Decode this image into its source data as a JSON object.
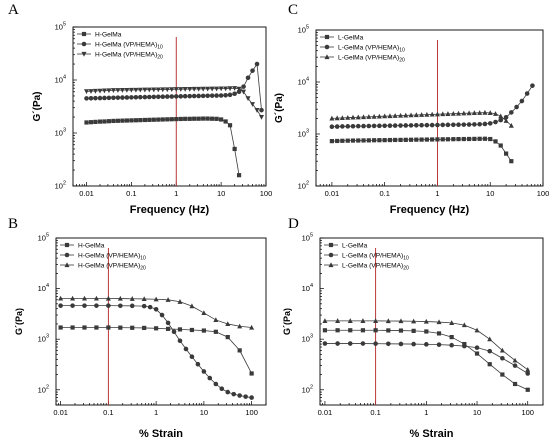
{
  "colors": {
    "series": "#3a3a3a",
    "axis": "#000000",
    "marker_line": "#b22222"
  },
  "chart_data": [
    {
      "type": "line",
      "panel": "A",
      "xscale": "log",
      "yscale": "log",
      "xlim": [
        0.005,
        100
      ],
      "ylim": [
        100,
        100000
      ],
      "xlabel": "Frequency (Hz)",
      "ylabel": "G´(Pa)",
      "xticks": [
        "0.01",
        "0.1",
        "1",
        "10",
        "100"
      ],
      "yticks": [
        {
          "m": "10",
          "e": "2"
        },
        {
          "m": "10",
          "e": "3"
        },
        {
          "m": "10",
          "e": "4"
        },
        {
          "m": "10",
          "e": "5"
        }
      ],
      "legend": "top-left",
      "vline": 1,
      "series": [
        {
          "name": "H-GelMa",
          "name_sub": "",
          "marker": "square",
          "x": [
            0.01,
            0.0126,
            0.0158,
            0.02,
            0.0251,
            0.0316,
            0.0398,
            0.0501,
            0.0631,
            0.0794,
            0.1,
            0.126,
            0.158,
            0.2,
            0.251,
            0.316,
            0.398,
            0.501,
            0.631,
            0.794,
            1,
            1.26,
            1.58,
            2,
            2.51,
            3.16,
            3.98,
            5.01,
            6.31,
            7.94,
            10,
            12.6,
            15.8,
            20,
            25.1
          ],
          "y": [
            1580,
            1600,
            1620,
            1640,
            1650,
            1670,
            1690,
            1700,
            1710,
            1720,
            1730,
            1740,
            1750,
            1760,
            1770,
            1780,
            1790,
            1800,
            1810,
            1820,
            1830,
            1840,
            1850,
            1850,
            1860,
            1860,
            1870,
            1870,
            1860,
            1850,
            1800,
            1650,
            1400,
            500,
            160
          ]
        },
        {
          "name": "H-GelMa (VP/HEMA)",
          "name_sub": "10",
          "marker": "circle",
          "x": [
            0.01,
            0.0126,
            0.0158,
            0.02,
            0.0251,
            0.0316,
            0.0398,
            0.0501,
            0.0631,
            0.0794,
            0.1,
            0.126,
            0.158,
            0.2,
            0.251,
            0.316,
            0.398,
            0.501,
            0.631,
            0.794,
            1,
            1.26,
            1.58,
            2,
            2.51,
            3.16,
            3.98,
            5.01,
            6.31,
            7.94,
            10,
            12.6,
            15.8,
            20,
            25.1,
            31.6,
            39.8,
            50.1,
            63.1,
            79.4
          ],
          "y": [
            4500,
            4520,
            4540,
            4560,
            4580,
            4600,
            4620,
            4640,
            4660,
            4680,
            4700,
            4720,
            4740,
            4760,
            4780,
            4800,
            4820,
            4840,
            4860,
            4880,
            4900,
            4920,
            4940,
            4960,
            4980,
            5000,
            5020,
            5040,
            5060,
            5080,
            5100,
            5150,
            5250,
            5500,
            6000,
            7500,
            11000,
            15000,
            20000,
            2700
          ]
        },
        {
          "name": "H-GelMa (VP/HEMA)",
          "name_sub": "20",
          "marker": "triangle-down",
          "x": [
            0.01,
            0.0126,
            0.0158,
            0.02,
            0.0251,
            0.0316,
            0.0398,
            0.0501,
            0.0631,
            0.0794,
            0.1,
            0.126,
            0.158,
            0.2,
            0.251,
            0.316,
            0.398,
            0.501,
            0.631,
            0.794,
            1,
            1.26,
            1.58,
            2,
            2.51,
            3.16,
            3.98,
            5.01,
            6.31,
            7.94,
            10,
            12.6,
            15.8,
            20,
            25.1,
            31.6,
            39.8,
            50.1,
            63.1,
            79.4
          ],
          "y": [
            6100,
            6150,
            6200,
            6250,
            6300,
            6350,
            6400,
            6420,
            6440,
            6460,
            6480,
            6500,
            6520,
            6540,
            6560,
            6580,
            6600,
            6620,
            6640,
            6660,
            6680,
            6700,
            6720,
            6740,
            6760,
            6780,
            6800,
            6820,
            6840,
            6860,
            6880,
            6900,
            6950,
            7000,
            6800,
            6000,
            4500,
            3500,
            2700,
            2000
          ]
        }
      ]
    },
    {
      "type": "line",
      "panel": "C",
      "xscale": "log",
      "yscale": "log",
      "xlim": [
        0.005,
        100
      ],
      "ylim": [
        100,
        100000
      ],
      "xlabel": "Frequency (Hz)",
      "ylabel": "G´(Pa)",
      "xticks": [
        "0.01",
        "0.1",
        "1",
        "10",
        "100"
      ],
      "yticks": [
        {
          "m": "10",
          "e": "2"
        },
        {
          "m": "10",
          "e": "3"
        },
        {
          "m": "10",
          "e": "4"
        },
        {
          "m": "10",
          "e": "5"
        }
      ],
      "legend": "top-left",
      "vline": 1,
      "series": [
        {
          "name": "L-GelMa",
          "name_sub": "",
          "marker": "square",
          "x": [
            0.01,
            0.0126,
            0.0158,
            0.02,
            0.0251,
            0.0316,
            0.0398,
            0.0501,
            0.0631,
            0.0794,
            0.1,
            0.126,
            0.158,
            0.2,
            0.251,
            0.316,
            0.398,
            0.501,
            0.631,
            0.794,
            1,
            1.26,
            1.58,
            2,
            2.51,
            3.16,
            3.98,
            5.01,
            6.31,
            7.94,
            10,
            12.6,
            15.8,
            20,
            25.1
          ],
          "y": [
            730,
            735,
            740,
            745,
            748,
            750,
            752,
            755,
            758,
            760,
            762,
            765,
            768,
            770,
            772,
            775,
            778,
            780,
            782,
            785,
            788,
            790,
            792,
            795,
            798,
            800,
            802,
            805,
            808,
            810,
            800,
            720,
            600,
            420,
            300
          ]
        },
        {
          "name": "L-GelMa (VP/HEMA)",
          "name_sub": "10",
          "marker": "circle",
          "x": [
            0.01,
            0.0126,
            0.0158,
            0.02,
            0.0251,
            0.0316,
            0.0398,
            0.0501,
            0.0631,
            0.0794,
            0.1,
            0.126,
            0.158,
            0.2,
            0.251,
            0.316,
            0.398,
            0.501,
            0.631,
            0.794,
            1,
            1.26,
            1.58,
            2,
            2.51,
            3.16,
            3.98,
            5.01,
            6.31,
            7.94,
            10,
            12.6,
            15.8,
            20,
            25.1,
            31.6,
            39.8,
            50.1,
            63.1
          ],
          "y": [
            1380,
            1390,
            1400,
            1405,
            1410,
            1415,
            1420,
            1425,
            1430,
            1435,
            1440,
            1445,
            1450,
            1455,
            1460,
            1465,
            1470,
            1475,
            1480,
            1485,
            1490,
            1495,
            1500,
            1505,
            1510,
            1515,
            1520,
            1530,
            1540,
            1560,
            1600,
            1700,
            1850,
            2100,
            2600,
            3300,
            4300,
            6000,
            8500
          ]
        },
        {
          "name": "L-GelMa (VP/HEMA)",
          "name_sub": "20",
          "marker": "triangle-up",
          "x": [
            0.01,
            0.0126,
            0.0158,
            0.02,
            0.0251,
            0.0316,
            0.0398,
            0.0501,
            0.0631,
            0.0794,
            0.1,
            0.126,
            0.158,
            0.2,
            0.251,
            0.316,
            0.398,
            0.501,
            0.631,
            0.794,
            1,
            1.26,
            1.58,
            2,
            2.51,
            3.16,
            3.98,
            5.01,
            6.31,
            7.94,
            10,
            12.6,
            15.8,
            20,
            25.1
          ],
          "y": [
            2000,
            2020,
            2040,
            2060,
            2080,
            2100,
            2120,
            2140,
            2160,
            2180,
            2200,
            2220,
            2240,
            2260,
            2280,
            2300,
            2320,
            2340,
            2360,
            2380,
            2400,
            2420,
            2440,
            2460,
            2480,
            2500,
            2520,
            2540,
            2560,
            2580,
            2550,
            2450,
            2200,
            1800,
            1450
          ]
        }
      ]
    },
    {
      "type": "line",
      "panel": "B",
      "xscale": "log",
      "yscale": "log",
      "xlim": [
        0.008,
        200
      ],
      "ylim": [
        50,
        100000
      ],
      "xlabel": "% Strain",
      "ylabel": "G´(Pa)",
      "xticks": [
        "0.01",
        "0.1",
        "1",
        "10",
        "100"
      ],
      "yticks": [
        {
          "m": "10",
          "e": "2"
        },
        {
          "m": "10",
          "e": "3"
        },
        {
          "m": "10",
          "e": "4"
        },
        {
          "m": "10",
          "e": "5"
        }
      ],
      "legend": "top-left",
      "vline": 0.1,
      "series": [
        {
          "name": "H-GelMa",
          "name_sub": "",
          "marker": "square",
          "x": [
            0.01,
            0.0178,
            0.0316,
            0.0562,
            0.1,
            0.178,
            0.316,
            0.562,
            1,
            1.78,
            3.16,
            5.62,
            10,
            17.8,
            31.6,
            56.2,
            100
          ],
          "y": [
            1700,
            1700,
            1700,
            1700,
            1700,
            1690,
            1680,
            1670,
            1640,
            1600,
            1560,
            1520,
            1480,
            1400,
            1100,
            600,
            210
          ]
        },
        {
          "name": "H-GelMa (VP/HEMA)",
          "name_sub": "10",
          "marker": "circle",
          "x": [
            0.01,
            0.0178,
            0.0316,
            0.0562,
            0.1,
            0.178,
            0.316,
            0.562,
            0.75,
            1,
            1.33,
            1.78,
            2.37,
            3.16,
            4.22,
            5.62,
            7.5,
            10,
            13.3,
            17.8,
            23.7,
            31.6,
            42.2,
            56.2,
            75,
            100
          ],
          "y": [
            4600,
            4600,
            4600,
            4600,
            4600,
            4580,
            4560,
            4500,
            4300,
            3900,
            3000,
            2100,
            1400,
            930,
            640,
            450,
            320,
            230,
            170,
            130,
            105,
            90,
            82,
            77,
            73,
            70
          ]
        },
        {
          "name": "H-GelMa (VP/HEMA)",
          "name_sub": "20",
          "marker": "triangle-up",
          "x": [
            0.01,
            0.0178,
            0.0316,
            0.0562,
            0.1,
            0.178,
            0.316,
            0.562,
            1,
            1.78,
            3.16,
            5.62,
            10,
            17.8,
            31.6,
            56.2,
            100
          ],
          "y": [
            6400,
            6400,
            6400,
            6400,
            6380,
            6350,
            6300,
            6250,
            6150,
            6000,
            5500,
            4500,
            3300,
            2400,
            2000,
            1800,
            1700
          ]
        }
      ]
    },
    {
      "type": "line",
      "panel": "D",
      "xscale": "log",
      "yscale": "log",
      "xlim": [
        0.008,
        200
      ],
      "ylim": [
        50,
        100000
      ],
      "xlabel": "% Strain",
      "ylabel": "G´(Pa)",
      "xticks": [
        "0.01",
        "0.1",
        "1",
        "10",
        "100"
      ],
      "yticks": [
        {
          "m": "10",
          "e": "2"
        },
        {
          "m": "10",
          "e": "3"
        },
        {
          "m": "10",
          "e": "4"
        },
        {
          "m": "10",
          "e": "5"
        }
      ],
      "legend": "top-left",
      "vline": 0.1,
      "series": [
        {
          "name": "L-GelMa",
          "name_sub": "",
          "marker": "square",
          "x": [
            0.01,
            0.0178,
            0.0316,
            0.0562,
            0.1,
            0.178,
            0.316,
            0.562,
            1,
            1.78,
            3.16,
            5.62,
            10,
            17.8,
            31.6,
            56.2,
            100
          ],
          "y": [
            1500,
            1500,
            1500,
            1500,
            1500,
            1490,
            1480,
            1460,
            1420,
            1300,
            1100,
            800,
            520,
            320,
            200,
            130,
            100
          ]
        },
        {
          "name": "L-GelMa (VP/HEMA)",
          "name_sub": "10",
          "marker": "circle",
          "x": [
            0.01,
            0.0178,
            0.0316,
            0.0562,
            0.1,
            0.178,
            0.316,
            0.562,
            1,
            1.78,
            3.16,
            5.62,
            10,
            17.8,
            31.6,
            56.2,
            100
          ],
          "y": [
            820,
            820,
            820,
            820,
            815,
            810,
            805,
            800,
            790,
            780,
            760,
            730,
            680,
            580,
            420,
            300,
            210
          ]
        },
        {
          "name": "L-GelMa (VP/HEMA)",
          "name_sub": "20",
          "marker": "triangle-up",
          "x": [
            0.01,
            0.0178,
            0.0316,
            0.0562,
            0.1,
            0.178,
            0.316,
            0.562,
            1,
            1.78,
            3.16,
            5.62,
            10,
            17.8,
            31.6,
            56.2,
            100
          ],
          "y": [
            2300,
            2300,
            2300,
            2300,
            2300,
            2290,
            2280,
            2260,
            2230,
            2180,
            2100,
            1900,
            1500,
            1000,
            600,
            380,
            250
          ]
        }
      ]
    }
  ]
}
